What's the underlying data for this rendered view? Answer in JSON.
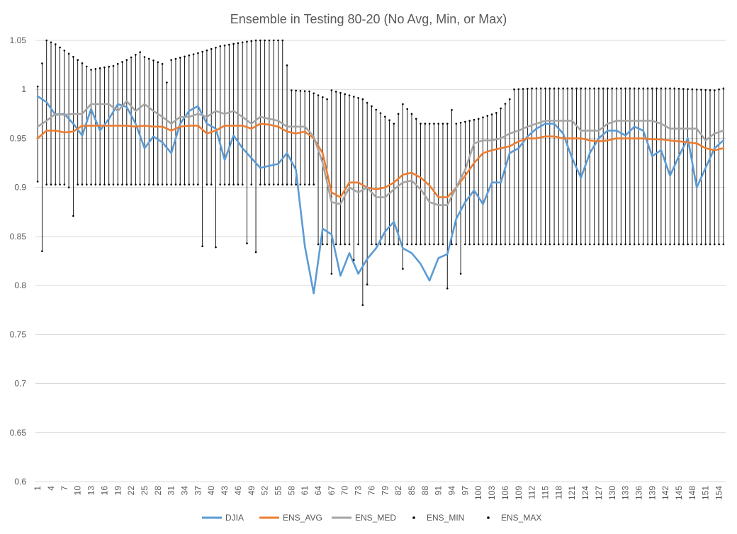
{
  "chart_data": {
    "type": "line",
    "title": "Ensemble in Testing 80-20 (No Avg, Min, or Max)",
    "xlabel": "",
    "ylabel": "",
    "x_range": [
      1,
      155
    ],
    "x_tick_labels": [
      "1",
      "4",
      "7",
      "10",
      "13",
      "16",
      "19",
      "22",
      "25",
      "28",
      "31",
      "34",
      "37",
      "40",
      "43",
      "46",
      "49",
      "52",
      "55",
      "58",
      "61",
      "64",
      "67",
      "70",
      "73",
      "76",
      "79",
      "82",
      "85",
      "88",
      "91",
      "94",
      "97",
      "100",
      "103",
      "106",
      "109",
      "112",
      "115",
      "118",
      "121",
      "124",
      "127",
      "130",
      "133",
      "136",
      "139",
      "142",
      "145",
      "148",
      "151",
      "154"
    ],
    "ylim": [
      0.6,
      1.05
    ],
    "y_tick_labels": [
      "0.6",
      "0.65",
      "0.7",
      "0.75",
      "0.8",
      "0.85",
      "0.9",
      "0.95",
      "1",
      "1.05"
    ],
    "grid": true,
    "legend_position": "bottom",
    "colors": {
      "DJIA": "#5b9bd5",
      "ENS_AVG": "#ed7d31",
      "ENS_MED": "#a5a5a5",
      "ENS_MIN": "#000000",
      "ENS_MAX": "#000000",
      "whisker": "#000000",
      "grid": "#d9d9d9"
    },
    "series": [
      {
        "name": "DJIA",
        "type": "line",
        "x": [
          1,
          3,
          5,
          7,
          9,
          11,
          13,
          15,
          17,
          19,
          21,
          23,
          25,
          27,
          29,
          31,
          33,
          35,
          37,
          39,
          41,
          43,
          45,
          47,
          49,
          51,
          53,
          55,
          57,
          59,
          61,
          63,
          65,
          67,
          69,
          71,
          73,
          75,
          77,
          79,
          81,
          83,
          85,
          87,
          89,
          91,
          93,
          95,
          97,
          99,
          101,
          103,
          105,
          107,
          109,
          111,
          113,
          115,
          117,
          119,
          121,
          123,
          125,
          127,
          129,
          131,
          133,
          135,
          137,
          139,
          141,
          143,
          145,
          147,
          149,
          151,
          153,
          155
        ],
        "values": [
          0.993,
          0.987,
          0.974,
          0.975,
          0.965,
          0.953,
          0.98,
          0.958,
          0.97,
          0.985,
          0.982,
          0.965,
          0.94,
          0.952,
          0.946,
          0.935,
          0.965,
          0.978,
          0.983,
          0.965,
          0.96,
          0.928,
          0.953,
          0.94,
          0.93,
          0.92,
          0.922,
          0.924,
          0.935,
          0.918,
          0.84,
          0.792,
          0.858,
          0.852,
          0.81,
          0.833,
          0.812,
          0.827,
          0.838,
          0.855,
          0.865,
          0.838,
          0.833,
          0.822,
          0.805,
          0.828,
          0.832,
          0.868,
          0.885,
          0.897,
          0.883,
          0.905,
          0.905,
          0.935,
          0.94,
          0.952,
          0.96,
          0.965,
          0.965,
          0.955,
          0.93,
          0.91,
          0.935,
          0.95,
          0.958,
          0.958,
          0.953,
          0.962,
          0.958,
          0.932,
          0.938,
          0.912,
          0.932,
          0.95,
          0.9,
          0.92,
          0.94,
          0.948
        ]
      },
      {
        "name": "ENS_AVG",
        "type": "line",
        "x": [
          1,
          3,
          5,
          7,
          9,
          11,
          13,
          15,
          17,
          19,
          21,
          23,
          25,
          27,
          29,
          31,
          33,
          35,
          37,
          39,
          41,
          43,
          45,
          47,
          49,
          51,
          53,
          55,
          57,
          59,
          61,
          63,
          65,
          67,
          69,
          71,
          73,
          75,
          77,
          79,
          81,
          83,
          85,
          87,
          89,
          91,
          93,
          95,
          97,
          99,
          101,
          103,
          105,
          107,
          109,
          111,
          113,
          115,
          117,
          119,
          121,
          123,
          125,
          127,
          129,
          131,
          133,
          135,
          137,
          139,
          141,
          143,
          145,
          147,
          149,
          151,
          153,
          155
        ],
        "values": [
          0.95,
          0.958,
          0.958,
          0.956,
          0.957,
          0.963,
          0.963,
          0.963,
          0.963,
          0.963,
          0.963,
          0.962,
          0.963,
          0.962,
          0.962,
          0.958,
          0.962,
          0.963,
          0.963,
          0.955,
          0.958,
          0.963,
          0.963,
          0.963,
          0.96,
          0.965,
          0.964,
          0.962,
          0.957,
          0.955,
          0.957,
          0.95,
          0.935,
          0.895,
          0.89,
          0.905,
          0.905,
          0.9,
          0.898,
          0.9,
          0.905,
          0.913,
          0.915,
          0.91,
          0.902,
          0.89,
          0.89,
          0.9,
          0.912,
          0.925,
          0.935,
          0.938,
          0.94,
          0.942,
          0.947,
          0.95,
          0.95,
          0.952,
          0.952,
          0.95,
          0.95,
          0.95,
          0.948,
          0.947,
          0.948,
          0.95,
          0.95,
          0.95,
          0.95,
          0.949,
          0.949,
          0.948,
          0.947,
          0.946,
          0.945,
          0.94,
          0.938,
          0.94
        ]
      },
      {
        "name": "ENS_MED",
        "type": "line",
        "x": [
          1,
          3,
          5,
          7,
          9,
          11,
          13,
          15,
          17,
          19,
          21,
          23,
          25,
          27,
          29,
          31,
          33,
          35,
          37,
          39,
          41,
          43,
          45,
          47,
          49,
          51,
          53,
          55,
          57,
          59,
          61,
          63,
          65,
          67,
          69,
          71,
          73,
          75,
          77,
          79,
          81,
          83,
          85,
          87,
          89,
          91,
          93,
          95,
          97,
          99,
          101,
          103,
          105,
          107,
          109,
          111,
          113,
          115,
          117,
          119,
          121,
          123,
          125,
          127,
          129,
          131,
          133,
          135,
          137,
          139,
          141,
          143,
          145,
          147,
          149,
          151,
          153,
          155
        ],
        "values": [
          0.962,
          0.968,
          0.975,
          0.974,
          0.975,
          0.975,
          0.985,
          0.985,
          0.985,
          0.978,
          0.988,
          0.978,
          0.985,
          0.978,
          0.972,
          0.965,
          0.972,
          0.972,
          0.975,
          0.972,
          0.978,
          0.975,
          0.978,
          0.972,
          0.965,
          0.972,
          0.97,
          0.968,
          0.962,
          0.962,
          0.962,
          0.952,
          0.925,
          0.885,
          0.883,
          0.9,
          0.895,
          0.9,
          0.89,
          0.89,
          0.898,
          0.905,
          0.907,
          0.898,
          0.885,
          0.882,
          0.882,
          0.9,
          0.918,
          0.945,
          0.948,
          0.948,
          0.95,
          0.955,
          0.958,
          0.962,
          0.965,
          0.968,
          0.968,
          0.968,
          0.968,
          0.958,
          0.958,
          0.958,
          0.965,
          0.968,
          0.968,
          0.968,
          0.968,
          0.968,
          0.965,
          0.96,
          0.96,
          0.96,
          0.96,
          0.948,
          0.955,
          0.958
        ]
      },
      {
        "name": "ENS_MIN",
        "type": "markers",
        "x": [
          1,
          2,
          3,
          8,
          9,
          10,
          38,
          41,
          48,
          50,
          65,
          67,
          68,
          72,
          74,
          75,
          83,
          93,
          94,
          96
        ],
        "values": [
          0.906,
          0.835,
          0.903,
          0.9,
          0.871,
          0.903,
          0.84,
          0.839,
          0.843,
          0.834,
          0.842,
          0.812,
          0.842,
          0.826,
          0.78,
          0.801,
          0.817,
          0.797,
          0.842,
          0.812
        ],
        "default": 0.903,
        "default_mid": 0.842,
        "default_late": 0.842
      },
      {
        "name": "ENS_MAX",
        "type": "markers",
        "x": [
          1,
          3,
          5,
          10,
          13,
          18,
          21,
          24,
          25,
          29,
          30,
          31,
          37,
          42,
          47,
          50,
          52,
          55,
          56,
          58,
          62,
          66,
          67,
          74,
          81,
          83,
          87,
          93,
          94,
          95,
          100,
          104,
          107,
          108,
          112,
          123,
          144,
          153,
          155
        ],
        "values": [
          1.003,
          1.05,
          1.046,
          1.03,
          1.02,
          1.024,
          1.03,
          1.038,
          1.033,
          1.026,
          1.007,
          1.03,
          1.037,
          1.044,
          1.048,
          1.05,
          1.05,
          1.05,
          1.05,
          0.999,
          0.998,
          0.99,
          0.999,
          0.99,
          0.965,
          0.985,
          0.965,
          0.965,
          0.979,
          0.965,
          0.97,
          0.976,
          0.99,
          1.0,
          1.001,
          1.001,
          1.001,
          0.999,
          1.001
        ]
      }
    ]
  },
  "legend": {
    "djia": "DJIA",
    "ens_avg": "ENS_AVG",
    "ens_med": "ENS_MED",
    "ens_min": "ENS_MIN",
    "ens_max": "ENS_MAX"
  }
}
